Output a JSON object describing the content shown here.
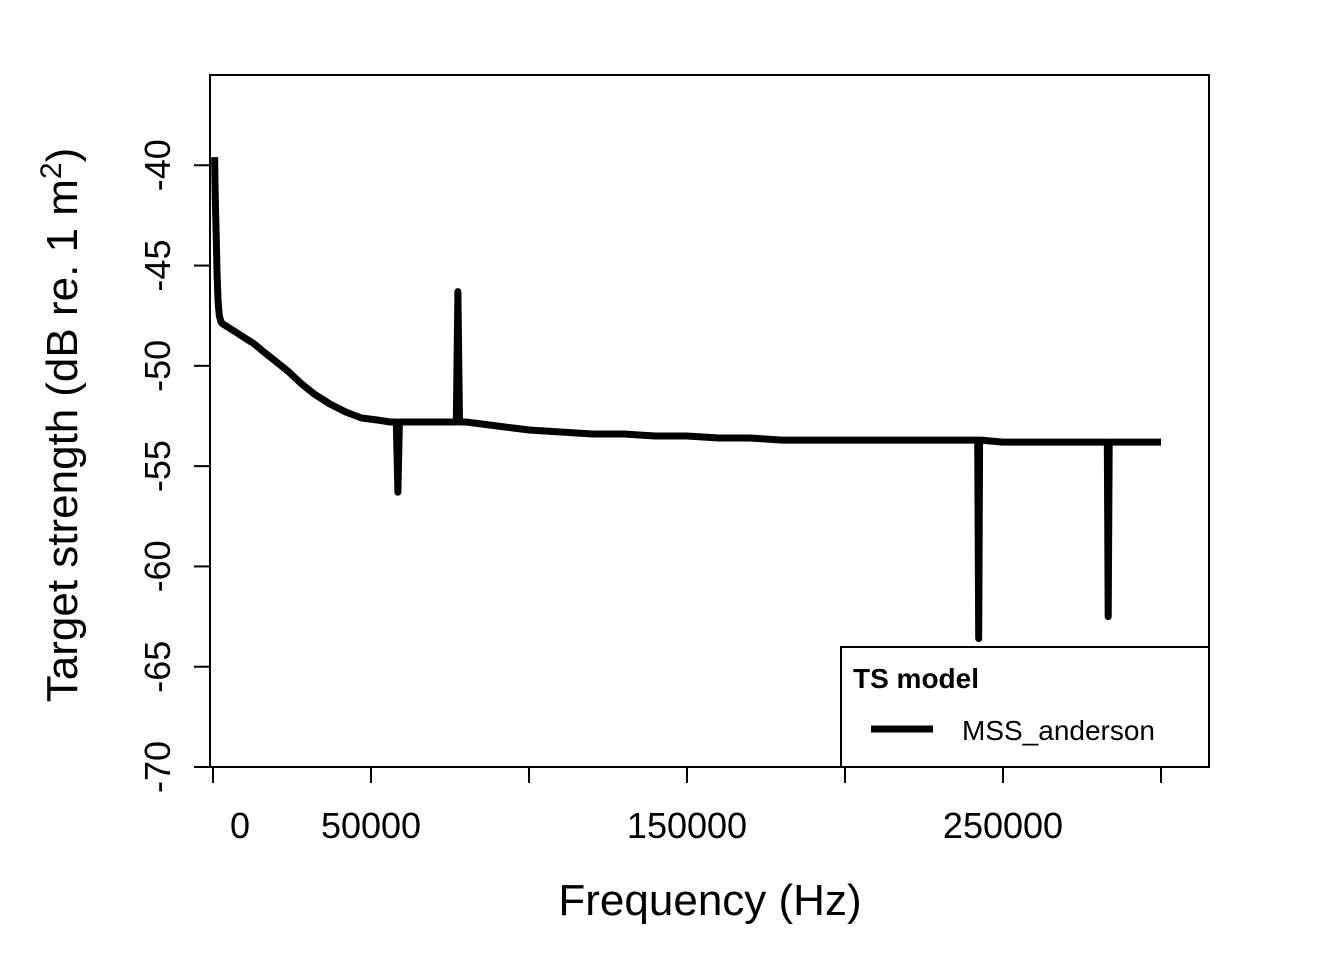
{
  "chart_data": {
    "type": "line",
    "title": "",
    "xlabel": "Frequency (Hz)",
    "ylabel": "Target strength",
    "ylabel_unit": "(dB re. 1 m",
    "ylabel_sup": "2",
    "ylabel_close": ")",
    "xlim": [
      0,
      300000
    ],
    "ylim": [
      -70,
      -35.5
    ],
    "xticks": [
      0,
      50000,
      100000,
      150000,
      200000,
      250000,
      300000
    ],
    "xtick_labels": [
      "0",
      "50000",
      "",
      "150000",
      "",
      "250000",
      ""
    ],
    "yticks": [
      -70,
      -65,
      -60,
      -55,
      -50,
      -45,
      -40
    ],
    "ytick_labels": [
      "-70",
      "-65",
      "-60",
      "-55",
      "-50",
      "-45",
      "-40"
    ],
    "legend": {
      "title": "TS model",
      "position": "bottom-right",
      "entries": [
        "MSS_anderson"
      ]
    },
    "series": [
      {
        "name": "MSS_anderson",
        "color": "#000000",
        "x": [
          500,
          700,
          1000,
          1300,
          1600,
          2000,
          2500,
          3000,
          4000,
          5000,
          7000,
          10000,
          13000,
          16000,
          20000,
          24000,
          26000,
          28000,
          32000,
          37000,
          42000,
          47000,
          52000,
          56000,
          58000,
          58500,
          59000,
          59500,
          60000,
          65000,
          70000,
          76000,
          77000,
          77500,
          78000,
          78500,
          80000,
          85000,
          90000,
          95000,
          100000,
          110000,
          120000,
          130000,
          140000,
          150000,
          160000,
          170000,
          180000,
          190000,
          200000,
          210000,
          220000,
          230000,
          240000,
          242000,
          242300,
          242600,
          243000,
          250000,
          260000,
          270000,
          280000,
          283000,
          283300,
          283600,
          284000,
          290000,
          300000
        ],
        "y": [
          -39.6,
          -41.5,
          -43.5,
          -45.5,
          -46.8,
          -47.5,
          -47.8,
          -47.9,
          -48.0,
          -48.1,
          -48.3,
          -48.6,
          -48.9,
          -49.3,
          -49.8,
          -50.3,
          -50.6,
          -50.9,
          -51.4,
          -51.9,
          -52.3,
          -52.6,
          -52.7,
          -52.8,
          -52.8,
          -56.3,
          -52.8,
          -52.8,
          -52.8,
          -52.8,
          -52.8,
          -52.8,
          -52.8,
          -46.3,
          -52.8,
          -52.8,
          -52.8,
          -52.9,
          -53.0,
          -53.1,
          -53.2,
          -53.3,
          -53.4,
          -53.4,
          -53.5,
          -53.5,
          -53.6,
          -53.6,
          -53.7,
          -53.7,
          -53.7,
          -53.7,
          -53.7,
          -53.7,
          -53.7,
          -53.7,
          -63.6,
          -53.7,
          -53.7,
          -53.8,
          -53.8,
          -53.8,
          -53.8,
          -53.8,
          -62.5,
          -53.8,
          -53.8,
          -53.8,
          -53.8
        ]
      }
    ]
  }
}
